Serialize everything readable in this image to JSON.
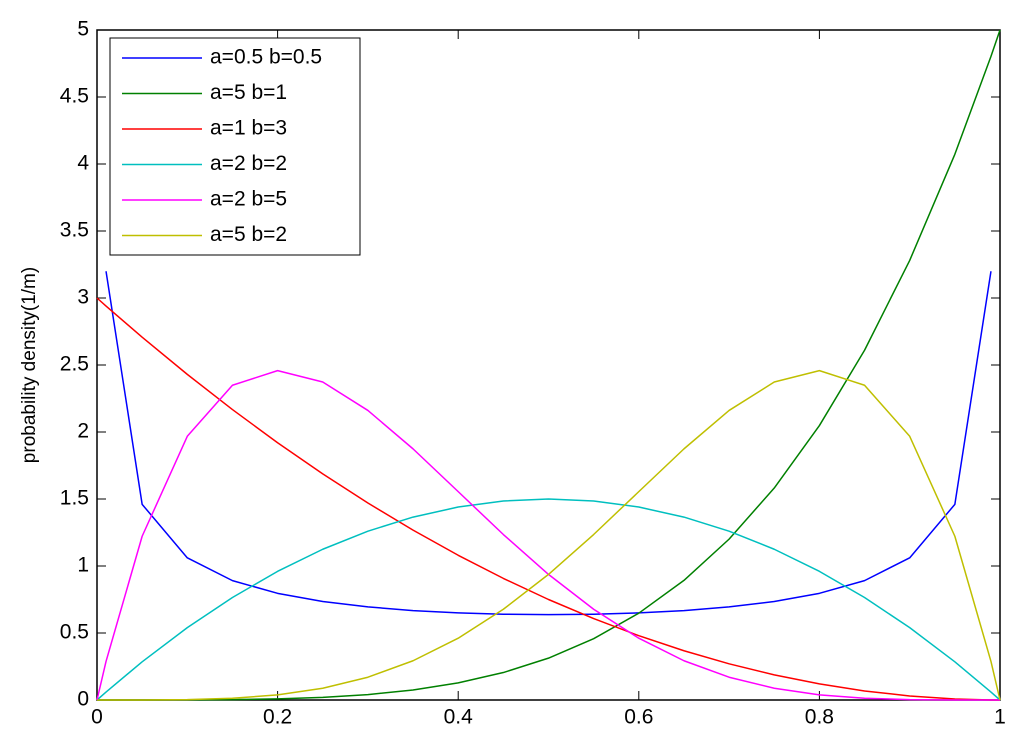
{
  "chart_data": {
    "type": "line",
    "y_label": "probability density(1/m)",
    "x": [
      0,
      0.01,
      0.05,
      0.1,
      0.15,
      0.2,
      0.25,
      0.3,
      0.35,
      0.4,
      0.45,
      0.5,
      0.55,
      0.6,
      0.65,
      0.7,
      0.75,
      0.8,
      0.85,
      0.9,
      0.95,
      0.99,
      1
    ],
    "series": [
      {
        "name": "a=0.5 b=0.5",
        "color": "#0000ff",
        "values": [
          null,
          3.2,
          1.46,
          1.061,
          0.891,
          0.796,
          0.735,
          0.695,
          0.667,
          0.65,
          0.64,
          0.637,
          0.64,
          0.65,
          0.667,
          0.695,
          0.735,
          0.796,
          0.891,
          1.061,
          1.46,
          3.2,
          null
        ]
      },
      {
        "name": "a=5 b=1",
        "color": "#008000",
        "values": [
          0,
          0,
          0,
          0.0005,
          0.0025,
          0.008,
          0.0195,
          0.0405,
          0.075,
          0.128,
          0.205,
          0.3125,
          0.4575,
          0.648,
          0.8925,
          1.2005,
          1.582,
          2.048,
          2.61,
          3.2805,
          4.0725,
          4.803,
          5
        ]
      },
      {
        "name": "a=1 b=3",
        "color": "#ff0000",
        "values": [
          3,
          2.94,
          2.7075,
          2.43,
          2.1675,
          1.92,
          1.6875,
          1.47,
          1.2675,
          1.08,
          0.9075,
          0.75,
          0.6075,
          0.48,
          0.3675,
          0.27,
          0.1875,
          0.12,
          0.0675,
          0.03,
          0.0075,
          0.0003,
          0
        ]
      },
      {
        "name": "a=2 b=2",
        "color": "#00bfbf",
        "values": [
          0,
          0.0594,
          0.285,
          0.54,
          0.765,
          0.96,
          1.125,
          1.26,
          1.365,
          1.44,
          1.485,
          1.5,
          1.485,
          1.44,
          1.365,
          1.26,
          1.125,
          0.96,
          0.765,
          0.54,
          0.285,
          0.0594,
          0
        ]
      },
      {
        "name": "a=2 b=5",
        "color": "#ff00ff",
        "values": [
          0,
          0.288,
          1.222,
          1.968,
          2.349,
          2.458,
          2.373,
          2.161,
          1.874,
          1.555,
          1.235,
          0.9375,
          0.677,
          0.461,
          0.293,
          0.17,
          0.088,
          0.038,
          0.013,
          0.0027,
          0,
          0,
          0
        ]
      },
      {
        "name": "a=5 b=2",
        "color": "#bfbf00",
        "values": [
          0,
          0,
          0,
          0.0027,
          0.013,
          0.038,
          0.088,
          0.17,
          0.293,
          0.461,
          0.677,
          0.9375,
          1.235,
          1.555,
          1.874,
          2.161,
          2.373,
          2.458,
          2.349,
          1.968,
          1.222,
          0.288,
          0
        ]
      }
    ],
    "xlim": [
      0,
      1
    ],
    "xticks": [
      0,
      0.2,
      0.4,
      0.6,
      0.8,
      1
    ],
    "ylim": [
      0,
      5
    ],
    "yticks": [
      0,
      0.5,
      1,
      1.5,
      2,
      2.5,
      3,
      3.5,
      4,
      4.5,
      5
    ],
    "legend": "upper-left"
  }
}
